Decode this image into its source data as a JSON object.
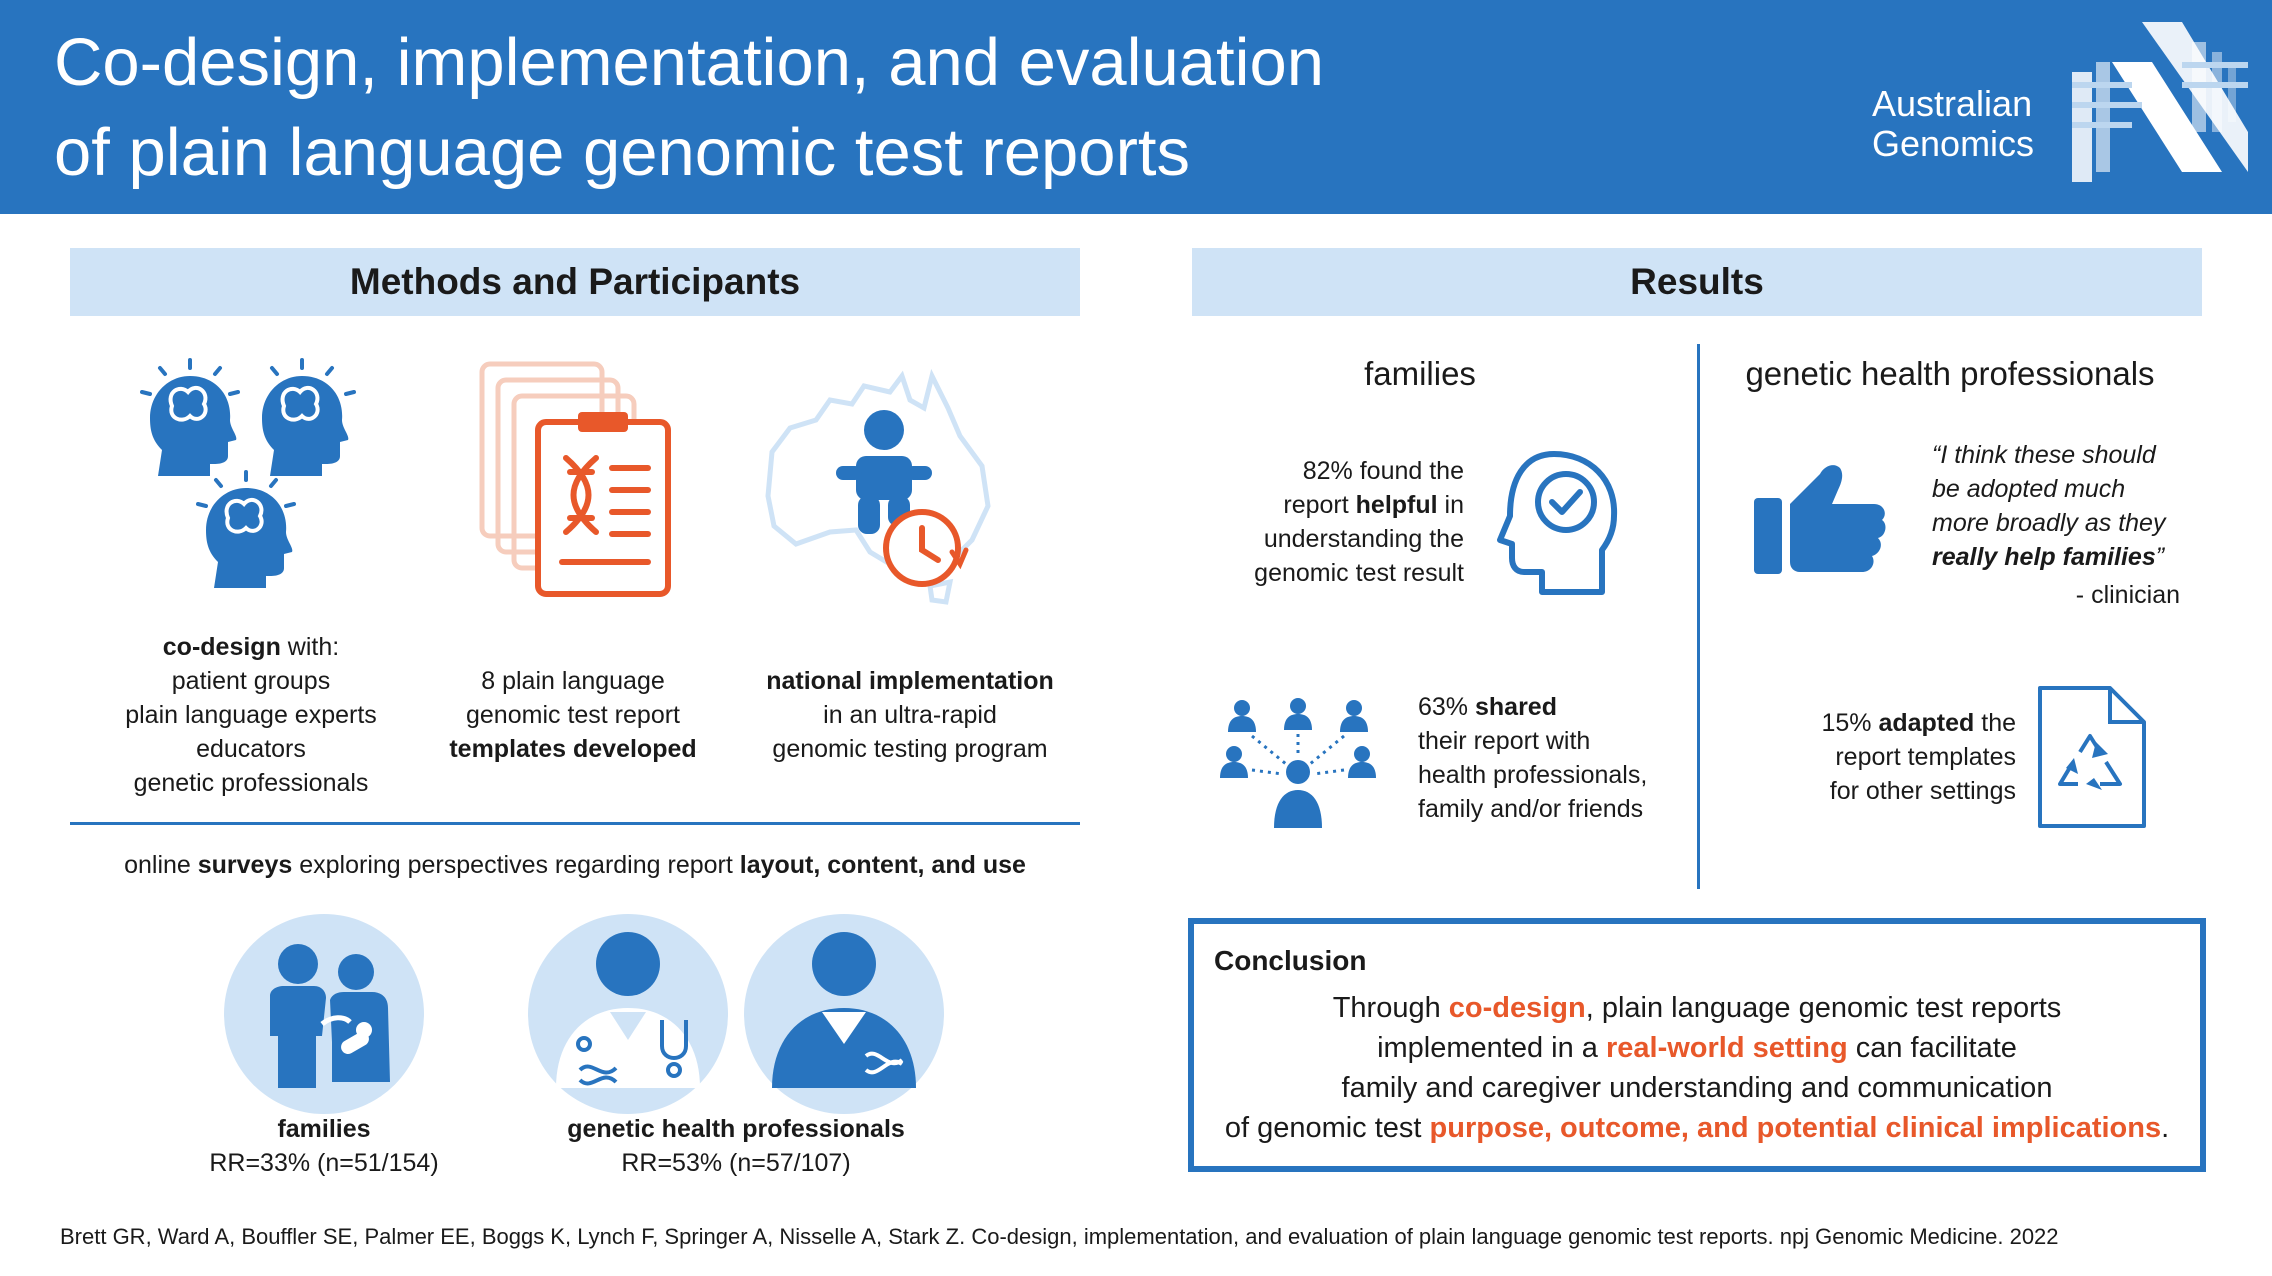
{
  "header": {
    "title_line1": "Co-design, implementation, and evaluation",
    "title_line2": "of plain language genomic test reports",
    "logo_line1": "Australian",
    "logo_line2": "Genomics"
  },
  "methods": {
    "heading": "Methods and Participants",
    "codesign": {
      "bold": "co-design",
      "suffix": " with:",
      "lines": [
        "patient groups",
        "plain language experts",
        "educators",
        "genetic professionals"
      ]
    },
    "templates": {
      "line1": "8 plain language",
      "line2": "genomic test report",
      "line3_bold": "templates developed"
    },
    "national": {
      "line1_bold": "national implementation",
      "line2": "in an ultra-rapid",
      "line3": "genomic testing program"
    },
    "surveys": {
      "prefix": "online ",
      "bold1": "surveys",
      "middle": " exploring perspectives regarding report ",
      "bold2": "layout, content, and use"
    },
    "families": {
      "label": "families",
      "rr": "RR=33% (n=51/154)"
    },
    "ghp": {
      "label": "genetic health professionals",
      "rr": "RR=53% (n=57/107)"
    }
  },
  "results": {
    "heading": "Results",
    "families_title": "families",
    "ghp_title": "genetic health professionals",
    "helpful": {
      "l1": "82% found the",
      "l2_pre": "report ",
      "l2_bold": "helpful",
      "l2_post": " in",
      "l3": "understanding the",
      "l4": "genomic test result"
    },
    "shared": {
      "l1_pre": "63% ",
      "l1_bold": "shared",
      "l2": "their report with",
      "l3": "health professionals,",
      "l4": "family and/or friends"
    },
    "quote": {
      "l1": "“I think these should",
      "l2": "be adopted much",
      "l3": "more broadly as they",
      "l4_bold": "really help families",
      "l4_post": "”",
      "attribution": "- clinician"
    },
    "adapted": {
      "l1_pre": "15% ",
      "l1_bold": "adapted",
      "l1_post": " the",
      "l2": "report templates",
      "l3": "for other settings"
    }
  },
  "conclusion": {
    "title": "Conclusion",
    "l1_pre": "Through ",
    "l1_hl": "co-design",
    "l1_post": ", plain language genomic test reports",
    "l2_pre": "implemented in a ",
    "l2_hl": "real-world setting",
    "l2_post": " can facilitate",
    "l3": "family and caregiver understanding and communication",
    "l4_pre": "of genomic test ",
    "l4_hl": "purpose, outcome, and potential clinical implications",
    "l4_post": "."
  },
  "citation": "Brett GR, Ward A, Bouffler SE, Palmer EE, Boggs K, Lynch F, Springer A, Nisselle A, Stark Z. Co-design, implementation, and evaluation of plain language genomic test reports. npj Genomic Medicine. 2022",
  "colors": {
    "brand_blue": "#2874bf",
    "light_blue": "#cfe3f6",
    "accent_orange": "#e8582a"
  }
}
